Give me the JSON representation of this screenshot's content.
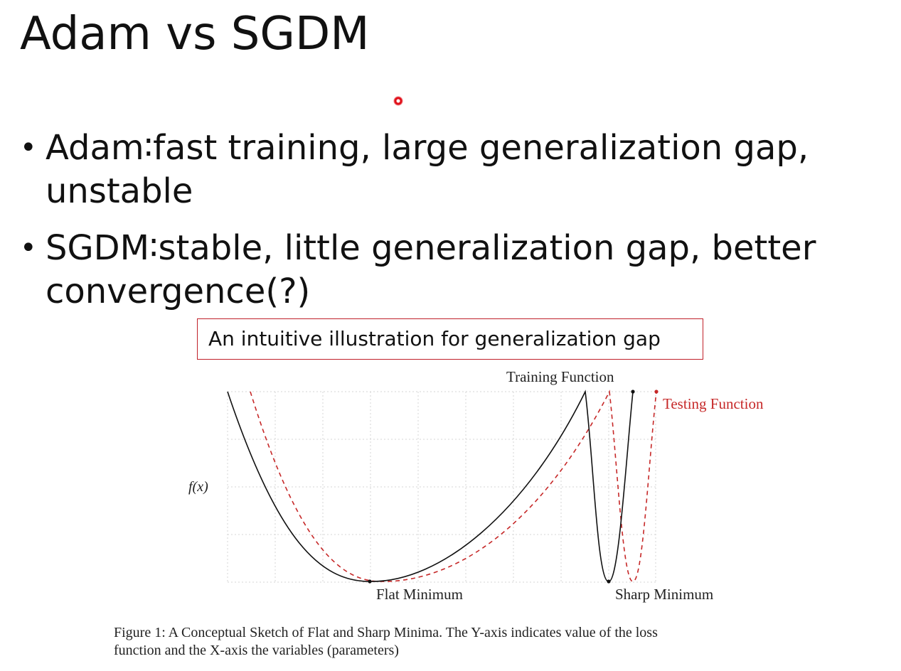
{
  "slide": {
    "title": "Adam vs SGDM",
    "bullets": [
      {
        "text": "Adam∶fast training, large generalization gap, unstable"
      },
      {
        "text": "SGDM∶stable, little generalization gap, better convergence(?)"
      }
    ]
  },
  "callout": {
    "text": "An intuitive illustration for generalization gap"
  },
  "figure": {
    "ylabel": "f(x)",
    "labels": {
      "training": "Training Function",
      "testing": "Testing Function",
      "flat": "Flat Minimum",
      "sharp": "Sharp Minimum"
    },
    "caption": {
      "line1": "Figure 1:  A Conceptual Sketch of Flat and Sharp Minima.  The Y-axis indicates value of the loss",
      "line2": "function and the X-axis the variables (parameters)"
    },
    "colors": {
      "training": "#111111",
      "testing": "#c62828",
      "grid": "#d6d6d6"
    }
  }
}
